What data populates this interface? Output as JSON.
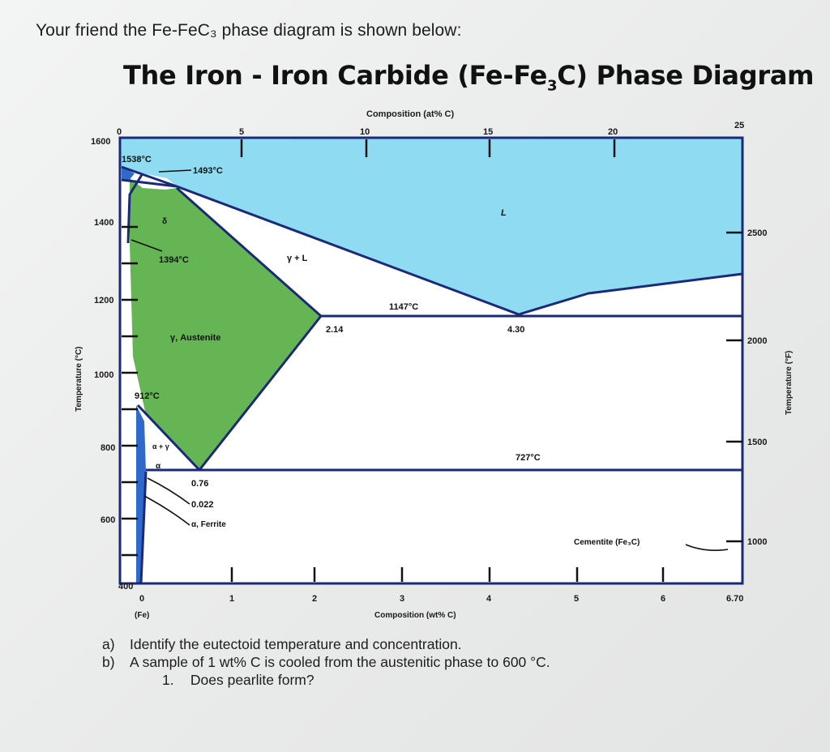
{
  "intro_text": "Your friend the Fe-FeC₃ phase diagram is shown below:",
  "title": {
    "main": "The Iron - Iron Carbide (Fe-Fe",
    "sub": "3",
    "end": "C) Phase Diagram"
  },
  "axes": {
    "top_label": "Composition (at% C)",
    "top_ticks": [
      "0",
      "5",
      "10",
      "15",
      "20",
      "25"
    ],
    "bottom_label": "Composition (wt% C)",
    "bottom_ticks": [
      "0",
      "1",
      "2",
      "3",
      "4",
      "5",
      "6",
      "6.70"
    ],
    "bottom_sublabel": "(Fe)",
    "left_label": "Temperature (°C)",
    "left_ticks": [
      "1600",
      "1400",
      "1200",
      "1000",
      "800",
      "600",
      "400"
    ],
    "right_label": "Temperature (°F)",
    "right_ticks": [
      "2500",
      "2000",
      "1500",
      "1000"
    ]
  },
  "annotations": {
    "t1538": "1538°C",
    "t1493": "1493°C",
    "t1394": "1394°C",
    "t1147": "1147°C",
    "t912": "912°C",
    "t727": "727°C",
    "c214": "2.14",
    "c430": "4.30",
    "c076": "0.76",
    "c0022": "0.022",
    "liquid": "L",
    "gamma_l": "γ + L",
    "austenite": "γ, Austenite",
    "ferrite": "α, Ferrite",
    "cementite": "Cementite (Fe₃C)",
    "delta": "δ",
    "alpha": "α",
    "alpha_gamma": "α + γ"
  },
  "colors": {
    "liquid": "#8fdcf2",
    "austenite": "#66b554",
    "ferrite": "#2f69c9",
    "line": "#1a2a78"
  },
  "questions": {
    "a_letter": "a)",
    "a_text": "Identify the eutectoid temperature and concentration.",
    "b_letter": "b)",
    "b_text": "A sample of 1 wt% C is cooled from the austenitic phase to 600 °C.",
    "b1_num": "1.",
    "b1_text": "Does pearlite form?"
  }
}
